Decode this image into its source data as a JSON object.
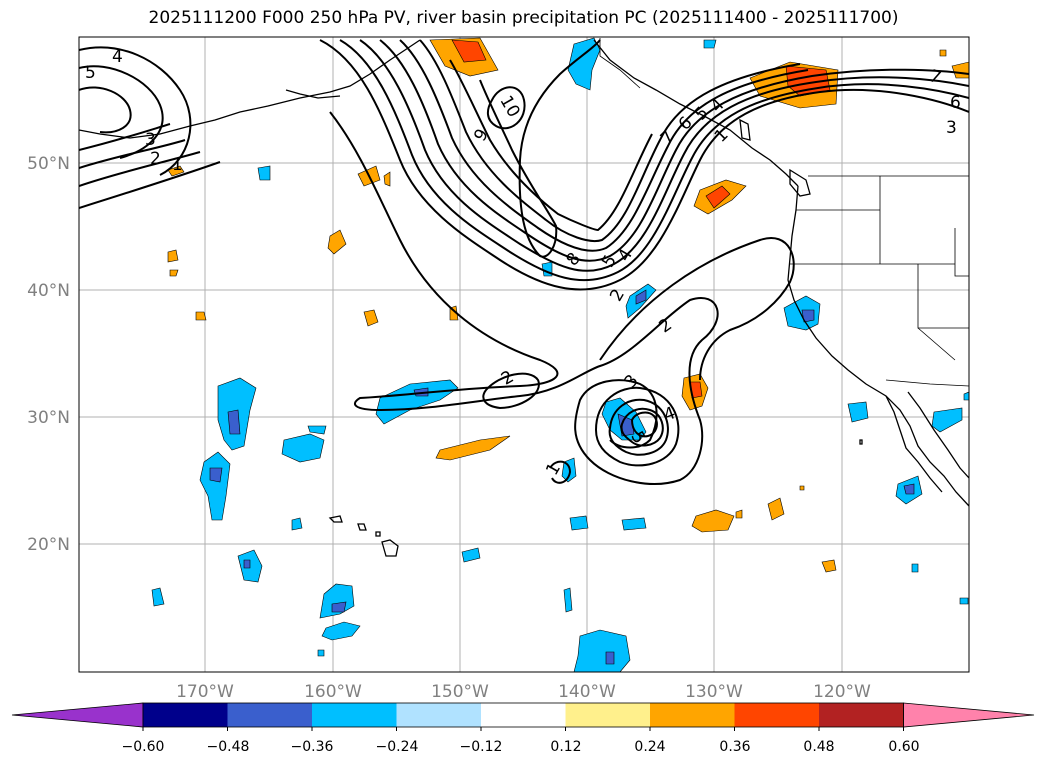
{
  "title": "2025111200 F000 250 hPa PV, river basin precipitation PC (2025111400 - 2025111700)",
  "map": {
    "lon_range": [
      -180,
      -110
    ],
    "lat_range": [
      10,
      60
    ],
    "lon_ticks": [
      {
        "lon": -170,
        "label": "170°W"
      },
      {
        "lon": -160,
        "label": "160°W"
      },
      {
        "lon": -150,
        "label": "150°W"
      },
      {
        "lon": -140,
        "label": "140°W"
      },
      {
        "lon": -130,
        "label": "130°W"
      },
      {
        "lon": -120,
        "label": "120°W"
      }
    ],
    "lat_ticks": [
      {
        "lat": 50,
        "label": "50°N"
      },
      {
        "lat": 40,
        "label": "40°N"
      },
      {
        "lat": 30,
        "label": "30°N"
      },
      {
        "lat": 20,
        "label": "20°N"
      }
    ]
  },
  "pv_contour_labels": [
    "4",
    "5",
    "3",
    "2",
    "1",
    "10",
    "9",
    "8",
    "5",
    "4",
    "2",
    "7",
    "6",
    "5",
    "4",
    "7",
    "6",
    "3",
    "2",
    "3",
    "4",
    "5",
    "2",
    "1",
    "1"
  ],
  "colorbar": {
    "ticks": [
      "−0.60",
      "−0.48",
      "−0.36",
      "−0.24",
      "−0.12",
      "0.12",
      "0.24",
      "0.36",
      "0.48",
      "0.60"
    ],
    "colors": [
      "#9932cc",
      "#00008b",
      "#3a5fcd",
      "#00bfff",
      "#b0e2ff",
      "#ffffff",
      "#fff08c",
      "#ffa500",
      "#ff4500",
      "#b22222",
      "#ff82ab"
    ]
  }
}
